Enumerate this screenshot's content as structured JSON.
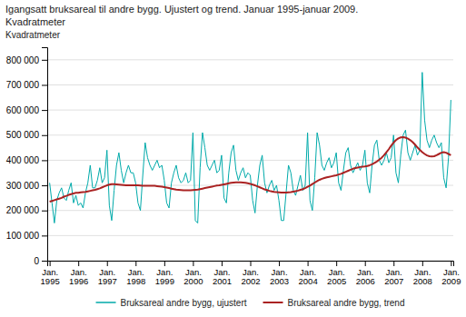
{
  "chart_data": {
    "type": "line",
    "title": "Igangsatt bruksareal til andre bygg. Ujustert og trend. Januar 1995-januar 2009.",
    "subtitle": "Kvadratmeter",
    "ylabel": "Kvadratmeter",
    "categories": [
      "Jan.\n1995",
      null,
      null,
      null,
      null,
      null,
      null,
      null,
      null,
      null,
      null,
      null,
      "Jan.\n1996",
      null,
      null,
      null,
      null,
      null,
      null,
      null,
      null,
      null,
      null,
      null,
      "Jan.\n1997",
      null,
      null,
      null,
      null,
      null,
      null,
      null,
      null,
      null,
      null,
      null,
      "Jan.\n1998",
      null,
      null,
      null,
      null,
      null,
      null,
      null,
      null,
      null,
      null,
      null,
      "Jan.\n1999",
      null,
      null,
      null,
      null,
      null,
      null,
      null,
      null,
      null,
      null,
      null,
      "Jan.\n2000",
      null,
      null,
      null,
      null,
      null,
      null,
      null,
      null,
      null,
      null,
      null,
      "Jan.\n2001",
      null,
      null,
      null,
      null,
      null,
      null,
      null,
      null,
      null,
      null,
      null,
      "Jan.\n2002",
      null,
      null,
      null,
      null,
      null,
      null,
      null,
      null,
      null,
      null,
      null,
      "Jan.\n2003",
      null,
      null,
      null,
      null,
      null,
      null,
      null,
      null,
      null,
      null,
      null,
      "Jan.\n2004",
      null,
      null,
      null,
      null,
      null,
      null,
      null,
      null,
      null,
      null,
      null,
      "Jan.\n2005",
      null,
      null,
      null,
      null,
      null,
      null,
      null,
      null,
      null,
      null,
      null,
      "Jan.\n2006",
      null,
      null,
      null,
      null,
      null,
      null,
      null,
      null,
      null,
      null,
      null,
      "Jan.\n2007",
      null,
      null,
      null,
      null,
      null,
      null,
      null,
      null,
      null,
      null,
      null,
      "Jan.\n2008",
      null,
      null,
      null,
      null,
      null,
      null,
      null,
      null,
      null,
      null,
      null,
      "Jan.\n2009"
    ],
    "series": [
      {
        "name": "Bruksareal andre bygg, ujustert",
        "color": "#00aaaa",
        "values": [
          310000,
          230000,
          150000,
          240000,
          270000,
          290000,
          250000,
          240000,
          280000,
          310000,
          230000,
          260000,
          220000,
          230000,
          210000,
          270000,
          310000,
          380000,
          290000,
          290000,
          320000,
          370000,
          310000,
          330000,
          440000,
          220000,
          160000,
          280000,
          380000,
          430000,
          360000,
          310000,
          350000,
          380000,
          350000,
          350000,
          310000,
          230000,
          200000,
          340000,
          470000,
          410000,
          380000,
          360000,
          380000,
          400000,
          370000,
          380000,
          320000,
          230000,
          210000,
          310000,
          350000,
          380000,
          330000,
          310000,
          320000,
          350000,
          310000,
          320000,
          510000,
          160000,
          150000,
          370000,
          510000,
          450000,
          380000,
          360000,
          380000,
          400000,
          350000,
          360000,
          420000,
          250000,
          230000,
          350000,
          430000,
          460000,
          360000,
          320000,
          350000,
          370000,
          330000,
          350000,
          340000,
          240000,
          190000,
          300000,
          380000,
          420000,
          310000,
          270000,
          300000,
          320000,
          280000,
          300000,
          240000,
          160000,
          160000,
          270000,
          380000,
          350000,
          280000,
          260000,
          300000,
          340000,
          280000,
          300000,
          510000,
          240000,
          200000,
          330000,
          510000,
          460000,
          380000,
          360000,
          390000,
          410000,
          370000,
          390000,
          430000,
          310000,
          280000,
          360000,
          430000,
          450000,
          380000,
          350000,
          370000,
          390000,
          360000,
          380000,
          440000,
          310000,
          270000,
          380000,
          460000,
          480000,
          400000,
          380000,
          400000,
          430000,
          390000,
          410000,
          500000,
          350000,
          310000,
          420000,
          500000,
          520000,
          430000,
          400000,
          430000,
          460000,
          420000,
          440000,
          750000,
          560000,
          480000,
          450000,
          480000,
          500000,
          470000,
          450000,
          470000,
          330000,
          290000,
          410000,
          640000
        ]
      },
      {
        "name": "Bruksareal andre bygg, trend",
        "color": "#aa2222",
        "values": [
          235000,
          238000,
          241000,
          244000,
          247000,
          250000,
          255000,
          258000,
          262000,
          265000,
          268000,
          270000,
          270000,
          272000,
          273000,
          274000,
          276000,
          278000,
          280000,
          282000,
          285000,
          288000,
          292000,
          296000,
          300000,
          303000,
          305000,
          305000,
          304000,
          303000,
          302000,
          301000,
          300000,
          300000,
          300000,
          300000,
          300000,
          300000,
          299000,
          298000,
          298000,
          298000,
          298000,
          298000,
          298000,
          297000,
          296000,
          295000,
          293000,
          291000,
          289000,
          287000,
          285000,
          283000,
          282000,
          281000,
          280000,
          280000,
          280000,
          280000,
          281000,
          282000,
          283000,
          285000,
          287000,
          289000,
          291000,
          293000,
          295000,
          297000,
          299000,
          300000,
          302000,
          304000,
          306000,
          308000,
          310000,
          311000,
          312000,
          312000,
          312000,
          311000,
          310000,
          308000,
          306000,
          303000,
          300000,
          296000,
          292000,
          288000,
          284000,
          281000,
          278000,
          276000,
          274000,
          273000,
          272000,
          271000,
          271000,
          271000,
          272000,
          273000,
          275000,
          277000,
          279000,
          282000,
          285000,
          289000,
          294000,
          299000,
          305000,
          311000,
          317000,
          322000,
          326000,
          329000,
          332000,
          334000,
          336000,
          338000,
          340000,
          343000,
          346000,
          350000,
          354000,
          358000,
          362000,
          366000,
          369000,
          371000,
          373000,
          374000,
          375000,
          377000,
          380000,
          384000,
          389000,
          395000,
          402000,
          410000,
          420000,
          432000,
          444000,
          458000,
          470000,
          480000,
          487000,
          491000,
          492000,
          490000,
          486000,
          480000,
          472000,
          462000,
          451000,
          441000,
          432000,
          425000,
          419000,
          416000,
          415000,
          416000,
          420000,
          425000,
          430000,
          432000,
          430000,
          425000,
          420000
        ]
      }
    ],
    "ylim": [
      0,
      850000
    ],
    "yticks": [
      0,
      {
        "value": 100000,
        "label": "100 000"
      },
      {
        "value": 200000,
        "label": "200 000"
      },
      {
        "value": 300000,
        "label": "300 000"
      },
      {
        "value": 400000,
        "label": "400 000"
      },
      {
        "value": 500000,
        "label": "500 000"
      },
      {
        "value": 600000,
        "label": "600 000"
      },
      {
        "value": 700000,
        "label": "700 000"
      },
      {
        "value": 800000,
        "label": "800 000"
      }
    ],
    "grid": true,
    "legend": "bottom"
  }
}
